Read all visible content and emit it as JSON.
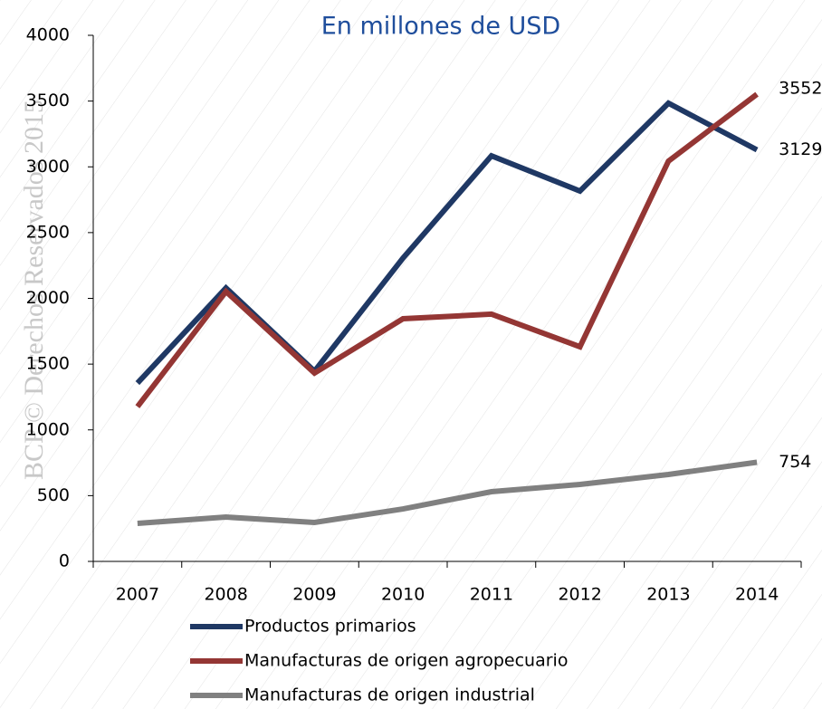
{
  "watermark": "BCP © Derechos Reservados 2015",
  "chart_data": {
    "type": "line",
    "title": "En millones de USD",
    "categories": [
      "2007",
      "2008",
      "2009",
      "2010",
      "2011",
      "2012",
      "2013",
      "2014"
    ],
    "series": [
      {
        "name": "Productos primarios",
        "color": "#1f3864",
        "values": [
          1356,
          2079,
          1446,
          2306,
          3084,
          2816,
          3484,
          3129
        ]
      },
      {
        "name": "Manufacturas de origen agropecuario",
        "color": "#943634",
        "values": [
          1177,
          2052,
          1432,
          1845,
          1880,
          1632,
          3043,
          3552
        ]
      },
      {
        "name": "Manufacturas de origen industrial",
        "color": "#808080",
        "values": [
          289,
          337,
          296,
          399,
          530,
          585,
          661,
          754
        ]
      }
    ],
    "ylim": [
      0,
      4000
    ],
    "yticks": [
      0,
      500,
      1000,
      1500,
      2000,
      2500,
      3000,
      3500,
      4000
    ],
    "grid": false
  }
}
